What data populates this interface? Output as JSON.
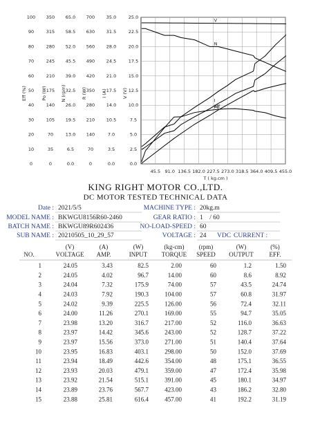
{
  "chart_data": {
    "type": "line",
    "y_axes": [
      {
        "label": "Eff (%)",
        "ylim": [
          0,
          100
        ],
        "yticks": [
          0,
          10,
          20,
          30,
          40,
          50,
          60,
          70,
          80,
          90,
          100
        ]
      },
      {
        "label": "Po (W)",
        "ylim": [
          0,
          350
        ],
        "yticks": [
          0,
          35,
          70,
          105,
          140,
          175,
          210,
          245,
          280,
          315,
          350
        ]
      },
      {
        "label": "N (rpm)",
        "ylim": [
          0,
          65
        ],
        "yticks": [
          {
            "value": 0,
            "label": "0.0"
          },
          6.5,
          {
            "value": 13,
            "label": "13.0"
          },
          19.5,
          {
            "value": 26,
            "label": "26.0"
          },
          32.5,
          {
            "value": 39,
            "label": "39.0"
          },
          45.5,
          {
            "value": 52,
            "label": "52.0"
          },
          58.5,
          {
            "value": 65,
            "label": "65.0"
          }
        ]
      },
      {
        "label": "R (W)",
        "ylim": [
          0,
          700
        ],
        "yticks": [
          0,
          70,
          140,
          210,
          280,
          350,
          420,
          490,
          560,
          630,
          700
        ]
      },
      {
        "label": "I (A)",
        "ylim": [
          0,
          35
        ],
        "yticks": [
          {
            "value": 0,
            "label": "0.0"
          },
          3.5,
          {
            "value": 7,
            "label": "7.0"
          },
          10.5,
          {
            "value": 14,
            "label": "14.0"
          },
          17.5,
          {
            "value": 21,
            "label": "21.0"
          },
          24.5,
          {
            "value": 28,
            "label": "28.0"
          },
          31.5,
          {
            "value": 35,
            "label": "35.0"
          }
        ]
      },
      {
        "label": "V (V)",
        "ylim": [
          0,
          25
        ],
        "yticks": [
          {
            "value": 0,
            "label": "0.0"
          },
          2.5,
          {
            "value": 5,
            "label": "5.0"
          },
          7.5,
          {
            "value": 10,
            "label": "10.0"
          },
          12.5,
          {
            "value": 15,
            "label": "15.0"
          },
          17.5,
          {
            "value": 20,
            "label": "20.0"
          },
          22.5,
          {
            "value": 25,
            "label": "25.0"
          }
        ]
      }
    ],
    "xlabel": "T ( kg.cm )",
    "xlim": [
      0,
      455
    ],
    "xticks": [
      45.5,
      {
        "value": 91,
        "label": "91.0"
      },
      136.5,
      {
        "value": 182,
        "label": "182.0"
      },
      227.5,
      {
        "value": 273,
        "label": "273.0"
      },
      318.5,
      {
        "value": 364,
        "label": "364.0"
      },
      409.5,
      {
        "value": 455,
        "label": "455.0"
      }
    ],
    "grid": true,
    "x": [
      2,
      14,
      74,
      104,
      126,
      169,
      217,
      243,
      271,
      298,
      354,
      359,
      391,
      423,
      457
    ],
    "series": [
      {
        "name": "V",
        "axis": 5,
        "color": "#000000",
        "values": [
          24.05,
          24.05,
          24.04,
          24.03,
          24.02,
          24.0,
          23.98,
          23.97,
          23.97,
          23.95,
          23.94,
          23.93,
          23.92,
          23.89,
          23.88
        ]
      },
      {
        "name": "N",
        "axis": 2,
        "color": "#000000",
        "values": [
          60,
          60,
          57,
          57,
          56,
          55,
          52,
          52,
          51,
          50,
          48,
          47,
          45,
          43,
          41
        ]
      },
      {
        "axis": 3,
        "color": "#000000",
        "values": [
          82.5,
          96.7,
          175.9,
          190.3,
          225.5,
          270.1,
          316.7,
          345.6,
          373.0,
          403.1,
          442.6,
          479.1,
          515.1,
          567.7,
          616.4
        ]
      },
      {
        "name": "Po",
        "axis": 1,
        "color": "#000000",
        "values": [
          1.2,
          8.6,
          43.5,
          60.8,
          72.4,
          94.7,
          116.0,
          128.7,
          140.4,
          152.0,
          175.1,
          172.4,
          180.1,
          186.2,
          192.2
        ]
      },
      {
        "name": "I",
        "axis": 4,
        "color": "#000000",
        "values": [
          3.43,
          4.02,
          7.32,
          7.92,
          9.39,
          11.26,
          13.2,
          14.42,
          15.56,
          16.83,
          18.49,
          20.03,
          21.54,
          23.76,
          25.81
        ]
      },
      {
        "name": "Eff",
        "axis": 0,
        "color": "#000000",
        "values": [
          1.5,
          8.92,
          24.74,
          31.97,
          32.11,
          35.05,
          36.63,
          37.22,
          37.64,
          37.69,
          36.55,
          35.98,
          34.97,
          32.8,
          31.19
        ]
      }
    ]
  },
  "company": "KING RIGHT MOTOR CO.,LTD.",
  "subtitle": "DC MOTOR TESTED TECHNICAL DATA",
  "info": {
    "left": [
      {
        "label": "Date :",
        "value": "2021/5/5"
      },
      {
        "label": "MODEL NAME :",
        "value": "BKWGU8156R60-2460"
      },
      {
        "label": "BATCH NAME :",
        "value": "BKWGU89R602436"
      },
      {
        "label": "SUB NAME :",
        "value": "20210505_10_29_57"
      }
    ],
    "right": [
      {
        "label": "MACHINE TYPE :",
        "value": "20kg.m"
      },
      {
        "label": "GEAR RATIO :",
        "value": "1    / 60"
      },
      {
        "label": "NO-LOAD-SPEED :",
        "value": "60"
      },
      {
        "label": "VOLTAGE :",
        "value": "24"
      }
    ],
    "voltage_unit": "VDC",
    "current_label": "CURRENT :"
  },
  "table": {
    "units": [
      "(V)",
      "(A)",
      "(W)",
      "(kg-cm)",
      "(rpm)",
      "(W)",
      "(%)"
    ],
    "headers": [
      "NO.",
      "VOLTAGE",
      "AMP.",
      "INPUT",
      "TORQUE",
      "SPEED",
      "OUTPUT",
      "EFF."
    ],
    "rows": [
      [
        "1",
        "24.05",
        "3.43",
        "82.5",
        "2.00",
        "60",
        "1.2",
        "1.50"
      ],
      [
        "2",
        "24.05",
        "4.02",
        "96.7",
        "14.00",
        "60",
        "8.6",
        "8.92"
      ],
      [
        "3",
        "24.04",
        "7.32",
        "175.9",
        "74.00",
        "57",
        "43.5",
        "24.74"
      ],
      [
        "4",
        "24.03",
        "7.92",
        "190.3",
        "104.00",
        "57",
        "60.8",
        "31.97"
      ],
      [
        "5",
        "24.02",
        "9.39",
        "225.5",
        "126.00",
        "56",
        "72.4",
        "32.11"
      ],
      [
        "6",
        "24.00",
        "11.26",
        "270.1",
        "169.00",
        "55",
        "94.7",
        "35.05"
      ],
      [
        "7",
        "23.98",
        "13.20",
        "316.7",
        "217.00",
        "52",
        "116.0",
        "36.63"
      ],
      [
        "8",
        "23.97",
        "14.42",
        "345.6",
        "243.00",
        "52",
        "128.7",
        "37.22"
      ],
      [
        "9",
        "23.97",
        "15.56",
        "373.0",
        "271.00",
        "51",
        "140.4",
        "37.64"
      ],
      [
        "10",
        "23.95",
        "16.83",
        "403.1",
        "298.00",
        "50",
        "152.0",
        "37.69"
      ],
      [
        "11",
        "23.94",
        "18.49",
        "442.6",
        "354.00",
        "48",
        "175.1",
        "36.55"
      ],
      [
        "12",
        "23.93",
        "20.03",
        "479.1",
        "359.00",
        "47",
        "172.4",
        "35.98"
      ],
      [
        "13",
        "23.92",
        "21.54",
        "515.1",
        "391.00",
        "45",
        "180.1",
        "34.97"
      ],
      [
        "14",
        "23.89",
        "23.76",
        "567.7",
        "423.00",
        "43",
        "186.2",
        "32.80"
      ],
      [
        "15",
        "23.88",
        "25.81",
        "616.4",
        "457.00",
        "41",
        "192.2",
        "31.19"
      ]
    ]
  }
}
